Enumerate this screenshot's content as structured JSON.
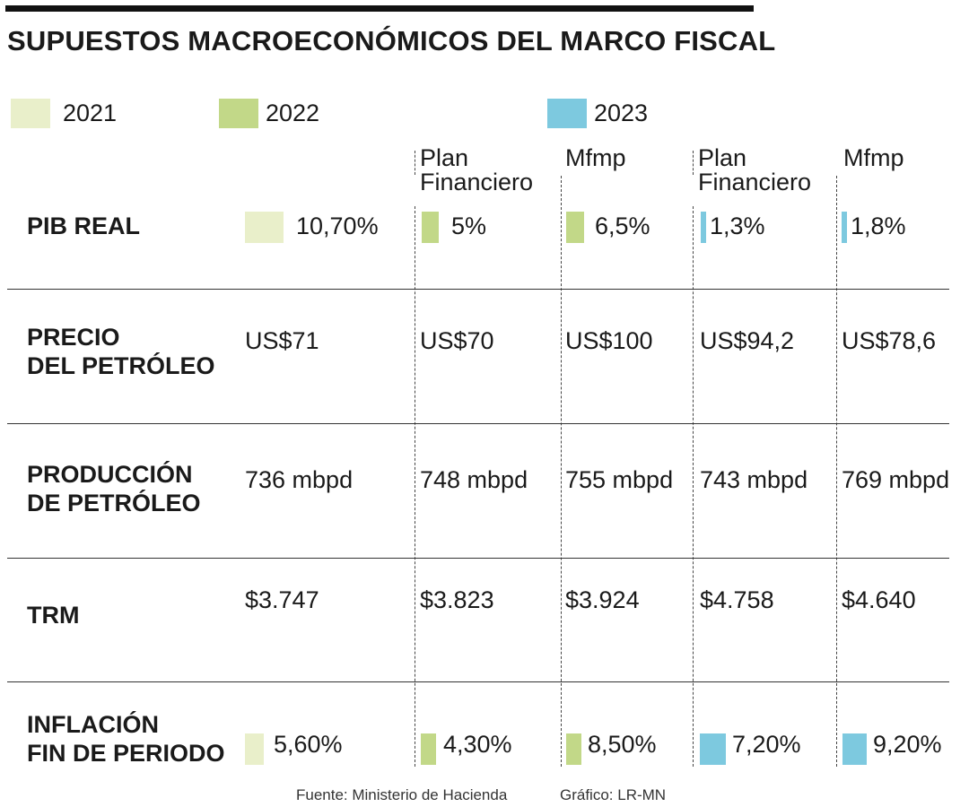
{
  "title": "SUPUESTOS MACROECONÓMICOS DEL MARCO FISCAL",
  "colors": {
    "y2021": "#e9efca",
    "y2022": "#c2d888",
    "y2023": "#7dc9df"
  },
  "legend": [
    {
      "label": "2021",
      "color": "#e9efca"
    },
    {
      "label": "2022",
      "color": "#c2d888"
    },
    {
      "label": "2023",
      "color": "#7dc9df"
    }
  ],
  "column_headers": [
    "Plan\nFinanciero",
    "Mfmp",
    "Plan\nFinanciero",
    "Mfmp"
  ],
  "rows": [
    {
      "label": "PIB REAL",
      "values": [
        "10,70%",
        "5%",
        "6,5%",
        "1,3%",
        "1,8%"
      ]
    },
    {
      "label": "PRECIO\nDEL PETRÓLEO",
      "values": [
        "US$71",
        "US$70",
        "US$100",
        "US$94,2",
        "US$78,6"
      ]
    },
    {
      "label": "PRODUCCIÓN\nDE PETRÓLEO",
      "values": [
        "736 mbpd",
        "748 mbpd",
        "755 mbpd",
        "743 mbpd",
        "769 mbpd"
      ]
    },
    {
      "label": "TRM",
      "values": [
        "$3.747",
        "$3.823",
        "$3.924",
        "$4.758",
        "$4.640"
      ]
    },
    {
      "label": "INFLACIÓN\nFIN DE PERIODO",
      "values": [
        "5,60%",
        "4,30%",
        "8,50%",
        "7,20%",
        "9,20%"
      ]
    }
  ],
  "chart_data": {
    "type": "table",
    "title": "SUPUESTOS MACROECONÓMICOS DEL MARCO FISCAL",
    "series": [
      {
        "name": "2021",
        "values": [
          "10,70%",
          "US$71",
          "736 mbpd",
          "$3.747",
          "5,60%"
        ]
      },
      {
        "name": "2022 Plan Financiero",
        "values": [
          "5%",
          "US$70",
          "748 mbpd",
          "$3.823",
          "4,30%"
        ]
      },
      {
        "name": "2022 Mfmp",
        "values": [
          "6,5%",
          "US$100",
          "755 mbpd",
          "$3.924",
          "8,50%"
        ]
      },
      {
        "name": "2023 Plan Financiero",
        "values": [
          "1,3%",
          "US$94,2",
          "743 mbpd",
          "$4.758",
          "7,20%"
        ]
      },
      {
        "name": "2023 Mfmp",
        "values": [
          "1,8%",
          "US$78,6",
          "769 mbpd",
          "$4.640",
          "9,20%"
        ]
      }
    ],
    "categories": [
      "PIB REAL",
      "PRECIO DEL PETRÓLEO",
      "PRODUCCIÓN DE PETRÓLEO",
      "TRM",
      "INFLACIÓN FIN DE PERIODO"
    ],
    "bar_values": {
      "pib_real": [
        10.7,
        5,
        6.5,
        1.3,
        1.8
      ],
      "inflacion": [
        5.6,
        4.3,
        8.5,
        7.2,
        9.2
      ]
    }
  },
  "footer": {
    "source": "Fuente: Ministerio de Hacienda",
    "credit": "Gráfico: LR-MN"
  }
}
